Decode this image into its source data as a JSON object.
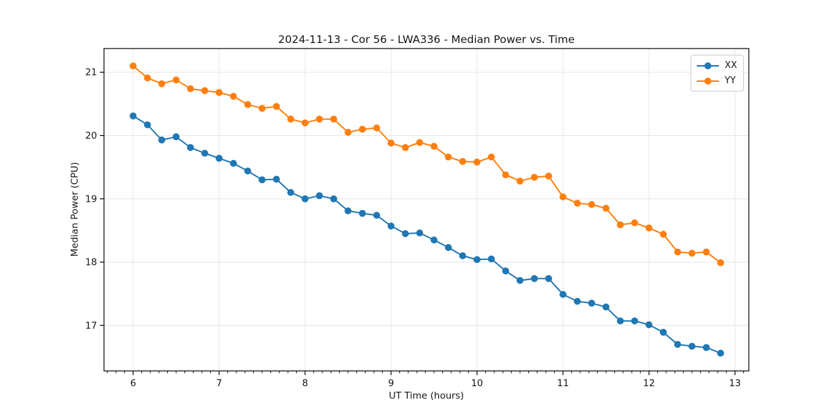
{
  "figure": {
    "background": "#ffffff"
  },
  "chart_data": {
    "type": "line",
    "title": "2024-11-13 - Cor 56 - LWA336 - Median Power vs. Time",
    "xlabel": "UT Time (hours)",
    "ylabel": "Median Power (CPU)",
    "xlim": [
      5.661,
      13.161
    ],
    "ylim": [
      16.28,
      21.375
    ],
    "xticks": [
      6,
      7,
      8,
      9,
      10,
      11,
      12,
      13
    ],
    "yticks": [
      17,
      18,
      19,
      20,
      21
    ],
    "x_minor_step": 0.1,
    "grid": true,
    "grid_color": "#e6e6e6",
    "spine_color": "#000000",
    "legend_position": "upper right",
    "x": [
      6.0,
      6.167,
      6.333,
      6.5,
      6.667,
      6.833,
      7.0,
      7.167,
      7.333,
      7.5,
      7.667,
      7.833,
      8.0,
      8.167,
      8.333,
      8.5,
      8.667,
      8.833,
      9.0,
      9.167,
      9.333,
      9.5,
      9.667,
      9.833,
      10.0,
      10.167,
      10.333,
      10.5,
      10.667,
      10.833,
      11.0,
      11.167,
      11.333,
      11.5,
      11.667,
      11.833,
      12.0,
      12.167,
      12.333,
      12.5,
      12.667,
      12.833
    ],
    "series": [
      {
        "name": "XX",
        "color": "#1f77b4",
        "values": [
          20.31,
          20.17,
          19.93,
          19.98,
          19.81,
          19.72,
          19.64,
          19.56,
          19.44,
          19.3,
          19.31,
          19.1,
          19.0,
          19.05,
          19.0,
          18.81,
          18.77,
          18.74,
          18.57,
          18.45,
          18.46,
          18.35,
          18.23,
          18.1,
          18.04,
          18.05,
          17.86,
          17.71,
          17.74,
          17.74,
          17.49,
          17.38,
          17.35,
          17.29,
          17.07,
          17.07,
          17.01,
          16.89,
          16.7,
          16.67,
          16.65,
          16.56
        ]
      },
      {
        "name": "YY",
        "color": "#ff7f0e",
        "values": [
          21.1,
          20.91,
          20.82,
          20.88,
          20.74,
          20.71,
          20.68,
          20.62,
          20.49,
          20.43,
          20.46,
          20.26,
          20.2,
          20.26,
          20.26,
          20.05,
          20.1,
          20.12,
          19.88,
          19.81,
          19.89,
          19.83,
          19.66,
          19.59,
          19.58,
          19.66,
          19.38,
          19.28,
          19.34,
          19.36,
          19.03,
          18.93,
          18.91,
          18.85,
          18.59,
          18.62,
          18.54,
          18.44,
          18.16,
          18.14,
          18.16,
          17.99
        ]
      }
    ]
  }
}
